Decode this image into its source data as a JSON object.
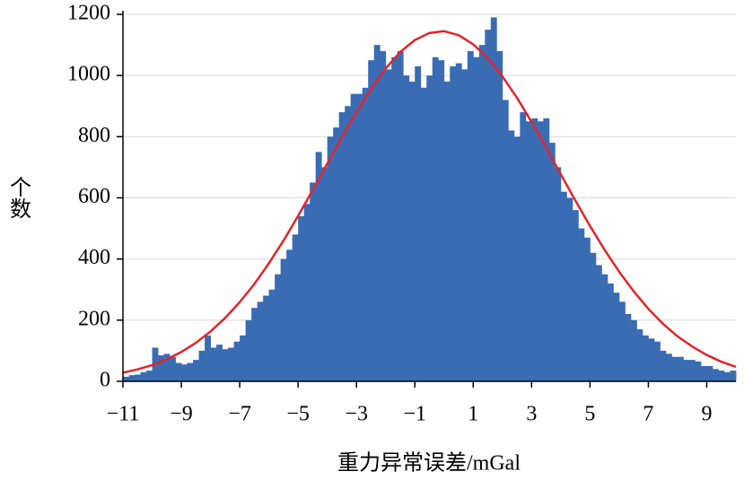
{
  "chart_data": {
    "type": "histogram",
    "xlabel": "重力异常误差/mGal",
    "ylabel": "个数",
    "color": "#3a6cb4",
    "bins": [
      -11,
      -10.8,
      -10.6,
      -10.4,
      -10.2,
      -10,
      -9.8,
      -9.6,
      -9.4,
      -9.2,
      -9,
      -8.8,
      -8.6,
      -8.4,
      -8.2,
      -8,
      -7.8,
      -7.6,
      -7.4,
      -7.2,
      -7,
      -6.8,
      -6.6,
      -6.4,
      -6.2,
      -6,
      -5.8,
      -5.6,
      -5.4,
      -5.2,
      -5,
      -4.8,
      -4.6,
      -4.4,
      -4.2,
      -4,
      -3.8,
      -3.6,
      -3.4,
      -3.2,
      -3,
      -2.8,
      -2.6,
      -2.4,
      -2.2,
      -2,
      -1.8,
      -1.6,
      -1.4,
      -1.2,
      -1,
      -0.8,
      -0.6,
      -0.4,
      -0.2,
      0,
      0.2,
      0.4,
      0.6,
      0.8,
      1,
      1.2,
      1.4,
      1.6,
      1.8,
      2,
      2.2,
      2.4,
      2.6,
      2.8,
      3,
      3.2,
      3.4,
      3.6,
      3.8,
      4,
      4.2,
      4.4,
      4.6,
      4.8,
      5,
      5.2,
      5.4,
      5.6,
      5.8,
      6,
      6.2,
      6.4,
      6.6,
      6.8,
      7,
      7.2,
      7.4,
      7.6,
      7.8,
      8,
      8.2,
      8.4,
      8.6,
      8.8,
      9,
      9.2,
      9.4,
      9.6,
      9.8,
      10
    ],
    "values": [
      15,
      20,
      22,
      30,
      35,
      110,
      85,
      90,
      80,
      60,
      55,
      60,
      70,
      100,
      150,
      110,
      120,
      105,
      110,
      130,
      150,
      200,
      240,
      260,
      280,
      300,
      350,
      400,
      430,
      480,
      540,
      580,
      650,
      750,
      700,
      800,
      830,
      880,
      900,
      940,
      940,
      960,
      1050,
      1100,
      1080,
      1020,
      1060,
      1080,
      1000,
      980,
      1030,
      960,
      1000,
      1060,
      1050,
      980,
      1030,
      1040,
      1020,
      1080,
      1060,
      1100,
      1150,
      1190,
      1080,
      920,
      820,
      800,
      880,
      850,
      860,
      850,
      860,
      780,
      700,
      620,
      600,
      560,
      500,
      470,
      420,
      380,
      350,
      320,
      290,
      260,
      220,
      200,
      170,
      150,
      140,
      130,
      100,
      90,
      80,
      80,
      70,
      70,
      65,
      50,
      50,
      40,
      35,
      30,
      35
    ],
    "curve": {
      "color": "#e3242b",
      "x": [
        -11,
        -10.5,
        -10,
        -9.5,
        -9,
        -8.5,
        -8,
        -7.5,
        -7,
        -6.5,
        -6,
        -5.5,
        -5,
        -4.5,
        -4,
        -3.5,
        -3,
        -2.5,
        -2,
        -1.5,
        -1,
        -0.5,
        0,
        0.5,
        1,
        1.5,
        2,
        2.5,
        3,
        3.5,
        4,
        4.5,
        5,
        5.5,
        6,
        6.5,
        7,
        7.5,
        8,
        8.5,
        9,
        9.5,
        10
      ],
      "values": [
        28,
        39,
        53,
        72,
        96,
        126,
        163,
        207,
        259,
        318,
        386,
        460,
        541,
        625,
        712,
        798,
        880,
        956,
        1023,
        1077,
        1116,
        1139,
        1145,
        1132,
        1102,
        1057,
        997,
        927,
        848,
        764,
        677,
        591,
        508,
        430,
        358,
        294,
        237,
        188,
        147,
        114,
        86,
        64,
        47
      ]
    },
    "xlim": [
      -11,
      10
    ],
    "ylim": [
      0,
      1200
    ],
    "xticks": [
      {
        "value": -11,
        "label": "−11"
      },
      {
        "value": -9,
        "label": "−9"
      },
      {
        "value": -7,
        "label": "−7"
      },
      {
        "value": -5,
        "label": "−5"
      },
      {
        "value": -3,
        "label": "−3"
      },
      {
        "value": -1,
        "label": "−1"
      },
      1,
      3,
      5,
      7,
      9
    ],
    "yticks": [
      0,
      200,
      400,
      600,
      800,
      1000,
      1200
    ],
    "grid": true
  }
}
